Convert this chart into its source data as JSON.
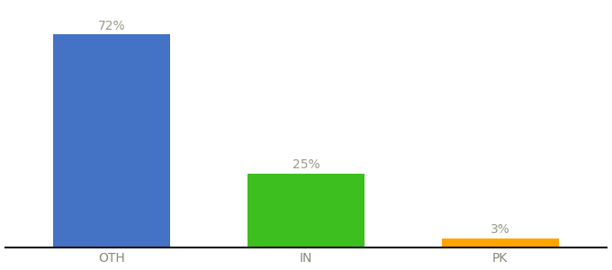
{
  "categories": [
    "OTH",
    "IN",
    "PK"
  ],
  "values": [
    72,
    25,
    3
  ],
  "labels": [
    "72%",
    "25%",
    "3%"
  ],
  "bar_colors": [
    "#4472C4",
    "#3DBF1F",
    "#FFA500"
  ],
  "background_color": "#ffffff",
  "ylim": [
    0,
    82
  ],
  "bar_width": 0.6,
  "label_fontsize": 10,
  "tick_fontsize": 10,
  "label_color": "#999988",
  "tick_color": "#888877",
  "spine_color": "#111111"
}
